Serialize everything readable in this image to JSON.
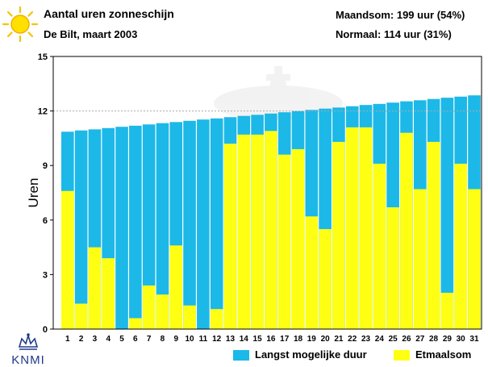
{
  "header": {
    "title": "Aantal uren zonneschijn",
    "subtitle": "De Bilt, maart 2003",
    "month_sum": "Maandsom: 199 uur (54%)",
    "normal": "Normaal: 114 uur (31%)"
  },
  "logo": {
    "text": "KNMI"
  },
  "icons": {
    "sun": "sun-icon"
  },
  "colors": {
    "max_duration": "#1cb8e8",
    "daily_sum": "#ffff14",
    "normal_line": "#aaaaaa",
    "logo": "#1e3a8a"
  },
  "chart_data": {
    "type": "bar",
    "ylabel": "Uren",
    "ylim": [
      0,
      15
    ],
    "yticks": [
      "0",
      "3",
      "6",
      "9",
      "12",
      "15"
    ],
    "normal_value": 12,
    "categories": [
      "1",
      "2",
      "3",
      "4",
      "5",
      "6",
      "7",
      "8",
      "9",
      "10",
      "11",
      "12",
      "13",
      "14",
      "15",
      "16",
      "17",
      "18",
      "19",
      "20",
      "21",
      "22",
      "23",
      "24",
      "25",
      "26",
      "27",
      "28",
      "29",
      "30",
      "31"
    ],
    "series": [
      {
        "name": "Langst mogelijke duur",
        "values": [
          10.86,
          10.93,
          10.99,
          11.06,
          11.13,
          11.19,
          11.26,
          11.33,
          11.39,
          11.46,
          11.53,
          11.59,
          11.66,
          11.73,
          11.79,
          11.86,
          11.93,
          11.99,
          12.06,
          12.13,
          12.19,
          12.26,
          12.33,
          12.39,
          12.46,
          12.53,
          12.59,
          12.66,
          12.73,
          12.79,
          12.86
        ]
      },
      {
        "name": "Etmaalsom",
        "values": [
          7.6,
          1.4,
          4.5,
          3.9,
          0,
          0.6,
          2.4,
          1.9,
          4.6,
          1.3,
          0,
          1.1,
          10.2,
          10.7,
          10.7,
          10.9,
          9.6,
          9.9,
          6.2,
          5.5,
          10.3,
          11.1,
          11.1,
          9.1,
          6.7,
          10.8,
          7.7,
          10.3,
          2.0,
          9.1,
          7.7
        ]
      }
    ]
  }
}
